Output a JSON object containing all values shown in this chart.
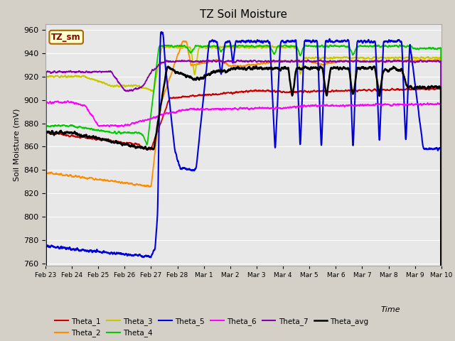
{
  "title": "TZ Soil Moisture",
  "xlabel": "Time",
  "ylabel": "Soil Moisture (mV)",
  "ylim": [
    758,
    965
  ],
  "yticks": [
    760,
    780,
    800,
    820,
    840,
    860,
    880,
    900,
    920,
    940,
    960
  ],
  "legend_label": "TZ_sm",
  "fig_bg": "#d4d0c8",
  "plot_bg": "#e8e8e8",
  "grid_color": "#ffffff",
  "series_colors": {
    "Theta_1": "#cc0000",
    "Theta_2": "#ff8c00",
    "Theta_3": "#c8c800",
    "Theta_4": "#00cc00",
    "Theta_5": "#0000dd",
    "Theta_6": "#ff00ff",
    "Theta_7": "#8800aa",
    "Theta_avg": "#000000"
  },
  "xtick_labels": [
    "Feb 23",
    "Feb 24",
    "Feb 25",
    "Feb 26",
    "Feb 27",
    "Feb 28",
    "Mar 1",
    "Mar 2",
    "Mar 3",
    "Mar 4",
    "Mar 5",
    "Mar 6",
    "Mar 7",
    "Mar 8",
    "Mar 9",
    "Mar 10"
  ]
}
